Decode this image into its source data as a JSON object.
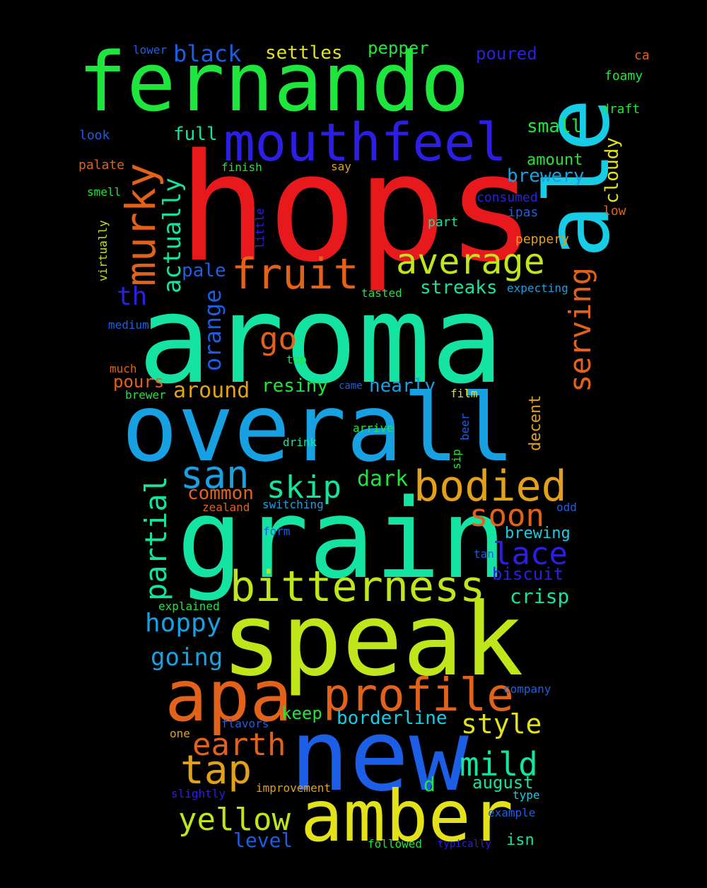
{
  "palette": {
    "red": "#e8191c",
    "green": "#1ee63c",
    "cyan": "#17cde6",
    "teal": "#14e3a1",
    "sky": "#17a1e3",
    "lime": "#bee61a",
    "yellow": "#e3e119",
    "orange": "#e3621b",
    "amber": "#e3a119",
    "blue": "#1c5fe6",
    "indigo": "#2d1ee6",
    "background": "#000000"
  },
  "words": {
    "hops": "hops",
    "aroma": "aroma",
    "overall": "overall",
    "grain": "grain",
    "speak": "speak",
    "new": "new",
    "fernando": "fernando",
    "ale": "ale",
    "amber": "amber",
    "apa": "apa",
    "mouthfeel": "mouthfeel",
    "bodied": "bodied",
    "profile": "profile",
    "bitterness": "bitterness",
    "fruit": "fruit",
    "average": "average",
    "murky": "murky",
    "san": "san",
    "tap": "tap",
    "yellow": "yellow",
    "earth": "earth",
    "mild": "mild",
    "lace": "lace",
    "soon": "soon",
    "skip": "skip",
    "serving": "serving",
    "partial": "partial",
    "style": "style",
    "go": "go",
    "actually": "actually",
    "hoppy": "hoppy",
    "going": "going",
    "th": "th",
    "orange": "orange",
    "black": "black",
    "settles": "settles",
    "pepper": "pepper",
    "poured": "poured",
    "full": "full",
    "small": "small",
    "amount": "amount",
    "brewery": "brewery",
    "cloudy": "cloudy",
    "pale": "pale",
    "streaks": "streaks",
    "around": "around",
    "resiny": "resiny",
    "nearly": "nearly",
    "dark": "dark",
    "common": "common",
    "pours": "pours",
    "crisp": "crisp",
    "brewing": "brewing",
    "biscuit": "biscuit",
    "borderline": "borderline",
    "keep": "keep",
    "august": "august",
    "level": "level",
    "isn": "isn",
    "d": "d",
    "decent": "decent",
    "lower": "lower",
    "ca": "ca",
    "foamy": "foamy",
    "draft": "draft",
    "look": "look",
    "palate": "palate",
    "finish": "finish",
    "say": "say",
    "smell": "smell",
    "consumed": "consumed",
    "ipas": "ipas",
    "low": "low",
    "little": "little",
    "virtually": "virtually",
    "part": "part",
    "peppery": "peppery",
    "tasted": "tasted",
    "expecting": "expecting",
    "medium": "medium",
    "much": "much",
    "top": "top",
    "came": "came",
    "brewer": "brewer",
    "film": "film",
    "beer": "beer",
    "arrive": "arrive",
    "drink": "drink",
    "sip": "sip",
    "zealand": "zealand",
    "switching": "switching",
    "odd": "odd",
    "form": "form",
    "tan": "tan",
    "explained": "explained",
    "company": "company",
    "flavors": "flavors",
    "one": "one",
    "improvement": "improvement",
    "slightly": "slightly",
    "type": "type",
    "example": "example",
    "followed": "followed",
    "typically": "typically"
  }
}
